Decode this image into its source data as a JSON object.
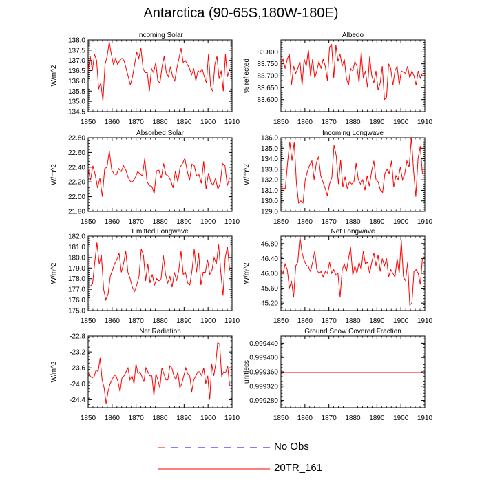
{
  "page_title": "Antarctica (90-65S,180W-180E)",
  "colors": {
    "series_line": "#ff0000",
    "obs_line": "#0000ff",
    "legend_obs_dash_red": "#ff0000",
    "axis": "#000000"
  },
  "legend": {
    "obs_label": "No Obs",
    "model_label": "20TR_161"
  },
  "chart_data": [
    {
      "type": "line",
      "title": "Incoming Solar",
      "ylabel": "W/m^2",
      "xlabel": "",
      "xlim": [
        1850,
        1910
      ],
      "ylim": [
        134.5,
        138.0
      ],
      "yticks": [
        "134.5",
        "135.0",
        "135.5",
        "136.0",
        "136.5",
        "137.0",
        "137.5",
        "138.0"
      ],
      "xticks": [
        "1850",
        "1860",
        "1870",
        "1880",
        "1890",
        "1900",
        "1910"
      ],
      "series": [
        {
          "name": "20TR_161",
          "x_start": 1850,
          "values": [
            136.5,
            137.2,
            136.5,
            137.3,
            137.0,
            135.6,
            135.9,
            135.0,
            136.8,
            137.2,
            137.9,
            137.3,
            136.8,
            137.1,
            136.8,
            137.0,
            137.1,
            137.0,
            136.6,
            136.2,
            135.8,
            136.2,
            136.8,
            137.4,
            137.1,
            137.6,
            136.6,
            136.4,
            136.4,
            135.5,
            136.6,
            136.4,
            136.9,
            136.0,
            135.9,
            136.7,
            137.2,
            136.4,
            136.2,
            136.7,
            136.2,
            136.0,
            136.6,
            137.1,
            137.6,
            136.9,
            137.0,
            136.8,
            136.6,
            136.3,
            136.6,
            136.0,
            136.5,
            136.4,
            136.6,
            136.2,
            135.9,
            137.3,
            135.7,
            135.5,
            136.8,
            137.2,
            136.1,
            136.5,
            135.5,
            137.3,
            136.2,
            136.6
          ]
        }
      ]
    },
    {
      "type": "line",
      "title": "Albedo",
      "ylabel": "% reflected",
      "xlabel": "",
      "xlim": [
        1850,
        1910
      ],
      "ylim": [
        83.55,
        83.85
      ],
      "yticks": [
        "83.600",
        "83.650",
        "83.700",
        "83.750",
        "83.800"
      ],
      "xticks": [
        "1850",
        "1860",
        "1870",
        "1880",
        "1890",
        "1900",
        "1910"
      ],
      "series": [
        {
          "name": "20TR_161",
          "x_start": 1850,
          "values": [
            83.745,
            83.77,
            83.73,
            83.77,
            83.79,
            83.66,
            83.74,
            83.71,
            83.73,
            83.76,
            83.66,
            83.77,
            83.74,
            83.81,
            83.7,
            83.77,
            83.69,
            83.72,
            83.76,
            83.73,
            83.77,
            83.74,
            83.68,
            83.82,
            83.83,
            83.69,
            83.83,
            83.76,
            83.79,
            83.74,
            83.77,
            83.69,
            83.66,
            83.73,
            83.72,
            83.76,
            83.74,
            83.67,
            83.8,
            83.69,
            83.72,
            83.65,
            83.78,
            83.7,
            83.67,
            83.72,
            83.64,
            83.67,
            83.74,
            83.6,
            83.61,
            83.75,
            83.73,
            83.66,
            83.72,
            83.74,
            83.66,
            83.72,
            83.715,
            83.71,
            83.74,
            83.69,
            83.72,
            83.7,
            83.66,
            83.72,
            83.69,
            83.71
          ]
        }
      ]
    },
    {
      "type": "line",
      "title": "Absorbed Solar",
      "ylabel": "W/m^2",
      "xlabel": "",
      "xlim": [
        1850,
        1910
      ],
      "ylim": [
        21.8,
        22.8
      ],
      "yticks": [
        "21.80",
        "22.00",
        "22.20",
        "22.40",
        "22.60",
        "22.80"
      ],
      "xticks": [
        "1850",
        "1860",
        "1870",
        "1880",
        "1890",
        "1900",
        "1910"
      ],
      "series": [
        {
          "name": "20TR_161",
          "x_start": 1850,
          "values": [
            22.38,
            22.22,
            22.42,
            22.3,
            22.12,
            22.25,
            22.0,
            22.38,
            22.4,
            22.62,
            22.36,
            22.31,
            22.3,
            22.38,
            22.34,
            22.42,
            22.36,
            22.26,
            22.2,
            22.21,
            22.26,
            22.34,
            22.31,
            22.28,
            22.52,
            22.2,
            22.15,
            22.14,
            22.04,
            22.35,
            22.36,
            22.25,
            22.45,
            22.3,
            22.28,
            22.22,
            22.12,
            22.35,
            22.2,
            22.4,
            22.45,
            22.52,
            22.35,
            22.22,
            22.44,
            22.42,
            22.28,
            22.3,
            22.18,
            22.48,
            22.1,
            22.32,
            22.2,
            22.15,
            22.25,
            22.1,
            22.18,
            22.45,
            22.42,
            22.15,
            22.26
          ]
        }
      ]
    },
    {
      "type": "line",
      "title": "Incoming Longwave",
      "ylabel": "W/m^2",
      "xlabel": "",
      "xlim": [
        1850,
        1910
      ],
      "ylim": [
        129.0,
        136.0
      ],
      "yticks": [
        "129.0",
        "130.0",
        "131.0",
        "132.0",
        "133.0",
        "134.0",
        "135.0",
        "136.0"
      ],
      "xticks": [
        "1850",
        "1860",
        "1870",
        "1880",
        "1890",
        "1900",
        "1910"
      ],
      "series": [
        {
          "name": "20TR_161",
          "x_start": 1850,
          "values": [
            131.2,
            131.2,
            131.2,
            133.6,
            135.6,
            133.8,
            135.6,
            131.7,
            129.8,
            130.0,
            129.8,
            132.0,
            132.8,
            133.4,
            133.8,
            132.0,
            133.6,
            134.2,
            132.4,
            131.8,
            131.2,
            130.5,
            131.6,
            132.2,
            135.3,
            134.3,
            131.6,
            133.9,
            131.3,
            132.3,
            131.2,
            131.8,
            131.6,
            131.8,
            133.6,
            132.0,
            131.6,
            132.0,
            131.0,
            132.4,
            131.4,
            132.8,
            133.8,
            132.0,
            131.8,
            131.0,
            130.8,
            132.6,
            133.0,
            132.6,
            133.8,
            131.3,
            132.4,
            132.0,
            133.2,
            132.0,
            132.6,
            133.8,
            133.2,
            136.0,
            132.8,
            130.4,
            134.0,
            135.2,
            132.6
          ]
        }
      ]
    },
    {
      "type": "line",
      "title": "Emitted Longwave",
      "ylabel": "W/m^2",
      "xlabel": "",
      "xlim": [
        1850,
        1910
      ],
      "ylim": [
        175.0,
        182.0
      ],
      "yticks": [
        "175.0",
        "176.0",
        "177.0",
        "178.0",
        "179.0",
        "180.0",
        "181.0",
        "182.0"
      ],
      "xticks": [
        "1850",
        "1860",
        "1870",
        "1880",
        "1890",
        "1900",
        "1910"
      ],
      "series": [
        {
          "name": "20TR_161",
          "x_start": 1850,
          "values": [
            177.3,
            177.3,
            177.5,
            179.5,
            181.4,
            179.4,
            180.2,
            177.0,
            176.0,
            176.5,
            178.2,
            178.8,
            179.4,
            179.8,
            180.4,
            178.6,
            179.4,
            180.6,
            178.6,
            178.0,
            177.2,
            176.8,
            177.4,
            178.2,
            180.8,
            180.2,
            177.8,
            179.4,
            177.6,
            178.4,
            177.4,
            178.0,
            177.8,
            178.0,
            180.2,
            178.4,
            177.6,
            178.2,
            177.2,
            178.6,
            177.8,
            178.8,
            180.6,
            178.4,
            178.6,
            177.6,
            177.4,
            178.8,
            180.8,
            178.6,
            180.4,
            177.4,
            178.6,
            178.6,
            179.8,
            178.4,
            178.8,
            180.0,
            179.4,
            181.2,
            178.6,
            176.4,
            180.0,
            181.0,
            178.8
          ]
        }
      ]
    },
    {
      "type": "line",
      "title": "Net Longwave",
      "ylabel": "W/m^2",
      "xlabel": "",
      "xlim": [
        1850,
        1910
      ],
      "ylim": [
        45.0,
        47.0
      ],
      "yticks": [
        "45.20",
        "45.60",
        "46.00",
        "46.40",
        "46.80"
      ],
      "xticks": [
        "1850",
        "1860",
        "1870",
        "1880",
        "1890",
        "1900",
        "1910"
      ],
      "series": [
        {
          "name": "20TR_161",
          "x_start": 1850,
          "values": [
            46.1,
            46.0,
            46.25,
            46.1,
            45.6,
            45.8,
            45.35,
            46.2,
            46.3,
            46.98,
            46.55,
            46.35,
            46.22,
            46.18,
            46.05,
            46.3,
            46.6,
            46.1,
            46.0,
            46.05,
            45.9,
            46.05,
            46.0,
            46.3,
            46.0,
            46.1,
            45.95,
            46.0,
            45.35,
            46.1,
            46.25,
            46.05,
            46.4,
            46.7,
            45.95,
            46.2,
            46.0,
            46.3,
            46.1,
            46.6,
            46.25,
            46.3,
            46.0,
            46.3,
            46.55,
            46.2,
            46.5,
            46.05,
            46.4,
            46.2,
            46.4,
            45.9,
            46.1,
            46.0,
            45.9,
            46.4,
            46.0,
            46.9,
            45.9,
            45.8,
            46.3,
            45.15,
            45.2,
            46.05,
            46.1,
            46.0,
            45.7,
            46.4
          ]
        }
      ]
    },
    {
      "type": "line",
      "title": "Net Radiation",
      "ylabel": "W/m^2",
      "xlabel": "",
      "xlim": [
        1850,
        1910
      ],
      "ylim": [
        -24.6,
        -22.8
      ],
      "yticks": [
        "-24.4",
        "-24.0",
        "-23.6",
        "-23.2",
        "-22.8"
      ],
      "xticks": [
        "1850",
        "1860",
        "1870",
        "1880",
        "1890",
        "1900",
        "1910"
      ],
      "series": [
        {
          "name": "20TR_161",
          "x_start": 1850,
          "values": [
            -23.72,
            -23.8,
            -23.85,
            -23.82,
            -23.65,
            -23.7,
            -23.35,
            -23.9,
            -24.1,
            -24.5,
            -24.2,
            -24.0,
            -23.9,
            -23.8,
            -23.8,
            -23.95,
            -24.2,
            -23.85,
            -23.8,
            -23.7,
            -23.6,
            -23.9,
            -23.8,
            -24.0,
            -23.5,
            -23.75,
            -23.7,
            -23.82,
            -23.95,
            -23.6,
            -23.7,
            -23.8,
            -23.8,
            -24.3,
            -23.75,
            -23.9,
            -24.1,
            -23.6,
            -23.75,
            -23.9,
            -23.9,
            -23.55,
            -23.6,
            -23.8,
            -23.9,
            -23.7,
            -24.1,
            -24.0,
            -23.8,
            -23.6,
            -23.75,
            -23.8,
            -24.2,
            -23.9,
            -23.8,
            -23.7,
            -23.7,
            -23.8,
            -23.6,
            -24.0,
            -23.8,
            -24.4,
            -23.5,
            -23.8,
            -23.5,
            -22.97,
            -23.0,
            -23.8,
            -23.7,
            -23.72,
            -23.55,
            -24.05
          ]
        }
      ]
    },
    {
      "type": "line",
      "title": "Ground Snow Covered Fraction",
      "ylabel": "unitless",
      "xlabel": "",
      "xlim": [
        1850,
        1910
      ],
      "ylim": [
        0.99926,
        0.99946
      ],
      "yticks": [
        "0.999280",
        "0.999320",
        "0.999360",
        "0.999400",
        "0.999440"
      ],
      "xticks": [
        "1850",
        "1860",
        "1870",
        "1880",
        "1890",
        "1900",
        "1910"
      ],
      "series": [
        {
          "name": "20TR_161",
          "x_start": 1850,
          "constant": 0.999358
        }
      ]
    }
  ]
}
